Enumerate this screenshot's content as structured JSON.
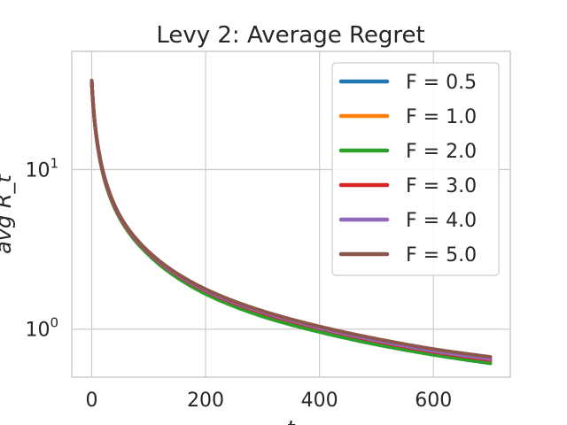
{
  "chart_data": {
    "type": "line",
    "title": "Levy 2: Average Regret",
    "xlabel": "t",
    "ylabel": "avg R_t",
    "x_scale": "linear",
    "y_scale": "log",
    "xlim": [
      -35,
      735
    ],
    "ylim": [
      0.5,
      55
    ],
    "x_ticks": [
      {
        "value": 0,
        "label": "0"
      },
      {
        "value": 200,
        "label": "200"
      },
      {
        "value": 400,
        "label": "400"
      },
      {
        "value": 600,
        "label": "600"
      }
    ],
    "y_ticks": [
      {
        "value": 1,
        "base": "10",
        "exp": "0"
      },
      {
        "value": 10,
        "base": "10",
        "exp": "1"
      }
    ],
    "grid": true,
    "legend_position": "top-right",
    "series": [
      {
        "name": "F = 0.5",
        "color": "#1f77b4",
        "x": [
          0,
          10,
          25,
          50,
          100,
          200,
          300,
          400,
          500,
          600,
          700
        ],
        "y": [
          36,
          14.5,
          8.2,
          5.0,
          3.0,
          1.72,
          1.25,
          1.0,
          0.83,
          0.71,
          0.63
        ]
      },
      {
        "name": "F = 1.0",
        "color": "#ff7f0e",
        "x": [
          0,
          10,
          25,
          50,
          100,
          200,
          300,
          400,
          500,
          600,
          700
        ],
        "y": [
          36,
          14.5,
          8.2,
          5.0,
          3.0,
          1.72,
          1.25,
          1.0,
          0.83,
          0.71,
          0.63
        ]
      },
      {
        "name": "F = 2.0",
        "color": "#2ca02c",
        "x": [
          0,
          10,
          25,
          50,
          100,
          200,
          300,
          400,
          500,
          600,
          700
        ],
        "y": [
          36,
          14.3,
          8.0,
          4.9,
          2.92,
          1.66,
          1.2,
          0.96,
          0.8,
          0.69,
          0.61
        ]
      },
      {
        "name": "F = 3.0",
        "color": "#d62728",
        "x": [
          0,
          10,
          25,
          50,
          100,
          200,
          300,
          400,
          500,
          600,
          700
        ],
        "y": [
          36,
          14.5,
          8.2,
          5.0,
          3.0,
          1.73,
          1.26,
          1.01,
          0.84,
          0.72,
          0.64
        ]
      },
      {
        "name": "F = 4.0",
        "color": "#9467bd",
        "x": [
          0,
          10,
          25,
          50,
          100,
          200,
          300,
          400,
          500,
          600,
          700
        ],
        "y": [
          36,
          14.6,
          8.3,
          5.05,
          3.03,
          1.75,
          1.28,
          1.02,
          0.85,
          0.73,
          0.65
        ]
      },
      {
        "name": "F = 5.0",
        "color": "#8c564b",
        "x": [
          0,
          10,
          25,
          50,
          100,
          200,
          300,
          400,
          500,
          600,
          700
        ],
        "y": [
          36,
          14.8,
          8.4,
          5.1,
          3.06,
          1.78,
          1.3,
          1.04,
          0.87,
          0.75,
          0.67
        ]
      }
    ]
  }
}
